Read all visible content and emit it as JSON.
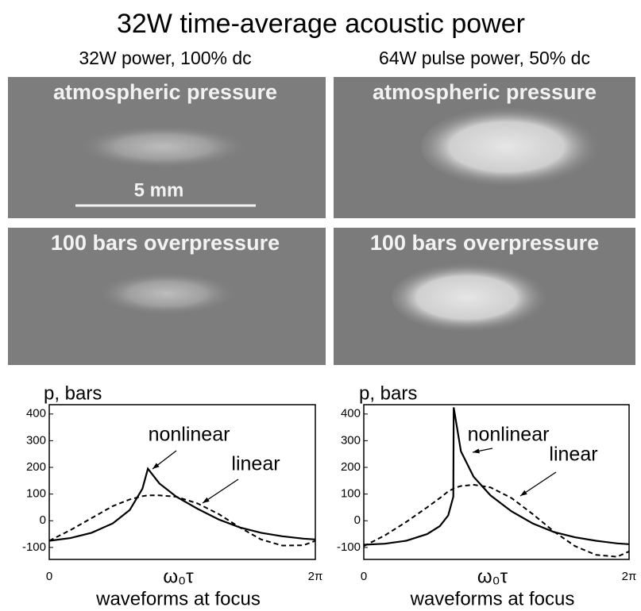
{
  "figure": {
    "title": "32W time-average acoustic power",
    "columns": [
      "32W power, 100% dc",
      "64W pulse power, 50% dc"
    ],
    "panels": [
      "atmospheric pressure",
      "atmospheric pressure",
      "100 bars overpressure",
      "100 bars overpressure"
    ],
    "scale": "5 mm"
  },
  "chart_data": [
    {
      "type": "line",
      "ylabel": "p, bars",
      "xlabel": "ω₀τ",
      "caption": "waveforms at focus",
      "x": [
        0,
        0.5,
        1,
        1.5,
        1.9,
        2.2,
        2.33,
        2.6,
        3,
        3.5,
        4,
        4.5,
        5,
        5.5,
        6,
        6.283
      ],
      "xlim": [
        0,
        6.283
      ],
      "xticks": [
        0,
        {
          "value": 6.283,
          "label": "2π"
        }
      ],
      "ylim": [
        -145,
        435
      ],
      "yticks": [
        -100,
        0,
        100,
        200,
        300,
        400
      ],
      "series": [
        {
          "name": "nonlinear",
          "color": "#000000",
          "dash": false,
          "values": [
            -75,
            -65,
            -45,
            -10,
            40,
            120,
            195,
            140,
            90,
            45,
            5,
            -25,
            -45,
            -58,
            -67,
            -70
          ]
        },
        {
          "name": "linear",
          "color": "#000000",
          "dash": true,
          "values": [
            -75,
            -35,
            10,
            55,
            80,
            92,
            95,
            95,
            90,
            65,
            25,
            -25,
            -70,
            -93,
            -92,
            -75
          ]
        }
      ]
    },
    {
      "type": "line",
      "ylabel": "p, bars",
      "xlabel": "ω₀τ",
      "caption": "waveforms at focus",
      "x": [
        0,
        0.5,
        1,
        1.5,
        1.8,
        2.0,
        2.12,
        2.13,
        2.3,
        2.6,
        3,
        3.5,
        4,
        4.5,
        5,
        5.5,
        6,
        6.283
      ],
      "xlim": [
        0,
        6.283
      ],
      "xticks": [
        0,
        {
          "value": 6.283,
          "label": "2π"
        }
      ],
      "ylim": [
        -145,
        435
      ],
      "yticks": [
        -100,
        0,
        100,
        200,
        300,
        400
      ],
      "series": [
        {
          "name": "nonlinear",
          "color": "#000000",
          "dash": false,
          "values": [
            -90,
            -86,
            -75,
            -50,
            -20,
            20,
            90,
            425,
            260,
            165,
            95,
            35,
            -10,
            -42,
            -62,
            -75,
            -85,
            -88
          ]
        },
        {
          "name": "linear",
          "color": "#000000",
          "dash": true,
          "values": [
            -95,
            -55,
            -5,
            50,
            85,
            110,
            120,
            122,
            130,
            135,
            125,
            85,
            25,
            -40,
            -95,
            -128,
            -135,
            -115
          ]
        }
      ]
    }
  ]
}
